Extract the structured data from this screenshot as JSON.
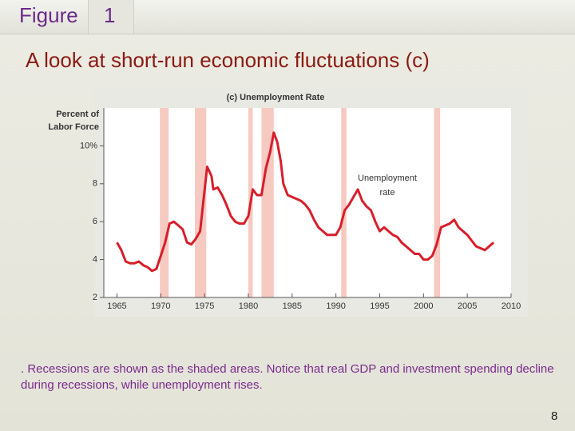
{
  "slide": {
    "figure_label": "Figure",
    "figure_number": "1",
    "heading": "A look at short-run economic fluctuations (c)",
    "caption": ". Recessions are shown as the shaded areas. Notice that real GDP and investment spending decline during recessions, while unemployment rises.",
    "page_number": "8"
  },
  "chart_data": {
    "type": "line",
    "title": "(c) Unemployment Rate",
    "ylabel": [
      "Percent of",
      "Labor Force"
    ],
    "annotation": [
      "Unemployment",
      "rate"
    ],
    "xlim": [
      1963.5,
      2010
    ],
    "xticks": [
      1965,
      1970,
      1975,
      1980,
      1985,
      1990,
      1995,
      2000,
      2005,
      2010
    ],
    "ylim": [
      2,
      12
    ],
    "yticks": [
      2,
      4,
      6,
      8,
      {
        "value": 10,
        "label": "10%"
      }
    ],
    "recessions": [
      [
        1969.9,
        1970.9
      ],
      [
        1973.9,
        1975.2
      ],
      [
        1980.0,
        1980.5
      ],
      [
        1981.5,
        1982.9
      ],
      [
        1990.6,
        1991.2
      ],
      [
        2001.2,
        2001.9
      ]
    ],
    "recession_color": "#f6c9c1",
    "color": "#d81e2a",
    "x": [
      1965,
      1965.5,
      1966,
      1966.5,
      1967,
      1967.5,
      1968,
      1968.5,
      1969,
      1969.5,
      1970,
      1970.5,
      1971,
      1971.5,
      1972,
      1972.5,
      1973,
      1973.5,
      1974,
      1974.5,
      1975.3,
      1975.8,
      1976,
      1976.5,
      1977,
      1977.5,
      1978,
      1978.5,
      1979,
      1979.5,
      1980,
      1980.5,
      1981,
      1981.5,
      1982,
      1982.5,
      1982.9,
      1983.3,
      1983.7,
      1984,
      1984.5,
      1985,
      1985.5,
      1986,
      1986.5,
      1987,
      1987.5,
      1988,
      1988.5,
      1989,
      1989.5,
      1990,
      1990.5,
      1991,
      1991.5,
      1992,
      1992.5,
      1993,
      1993.5,
      1994,
      1994.5,
      1995,
      1995.5,
      1996,
      1996.5,
      1997,
      1997.5,
      1998,
      1998.5,
      1999,
      1999.5,
      2000,
      2000.5,
      2001,
      2001.5,
      2002,
      2002.5,
      2003,
      2003.5,
      2004,
      2004.5,
      2005,
      2005.5,
      2006,
      2006.5,
      2007,
      2007.5,
      2008
    ],
    "values": [
      4.9,
      4.5,
      3.9,
      3.8,
      3.8,
      3.9,
      3.7,
      3.6,
      3.4,
      3.5,
      4.2,
      4.9,
      5.9,
      6.0,
      5.8,
      5.6,
      4.9,
      4.8,
      5.1,
      5.5,
      8.9,
      8.4,
      7.7,
      7.8,
      7.4,
      6.9,
      6.3,
      6.0,
      5.9,
      5.9,
      6.3,
      7.7,
      7.4,
      7.4,
      8.8,
      9.7,
      10.7,
      10.2,
      9.2,
      8.0,
      7.4,
      7.3,
      7.2,
      7.1,
      6.9,
      6.6,
      6.1,
      5.7,
      5.5,
      5.3,
      5.3,
      5.3,
      5.7,
      6.6,
      6.9,
      7.3,
      7.7,
      7.1,
      6.8,
      6.6,
      6.0,
      5.5,
      5.7,
      5.5,
      5.3,
      5.2,
      4.9,
      4.7,
      4.5,
      4.3,
      4.3,
      4.0,
      4.0,
      4.2,
      4.8,
      5.7,
      5.8,
      5.9,
      6.1,
      5.7,
      5.5,
      5.3,
      5.0,
      4.7,
      4.6,
      4.5,
      4.7,
      4.9
    ]
  }
}
